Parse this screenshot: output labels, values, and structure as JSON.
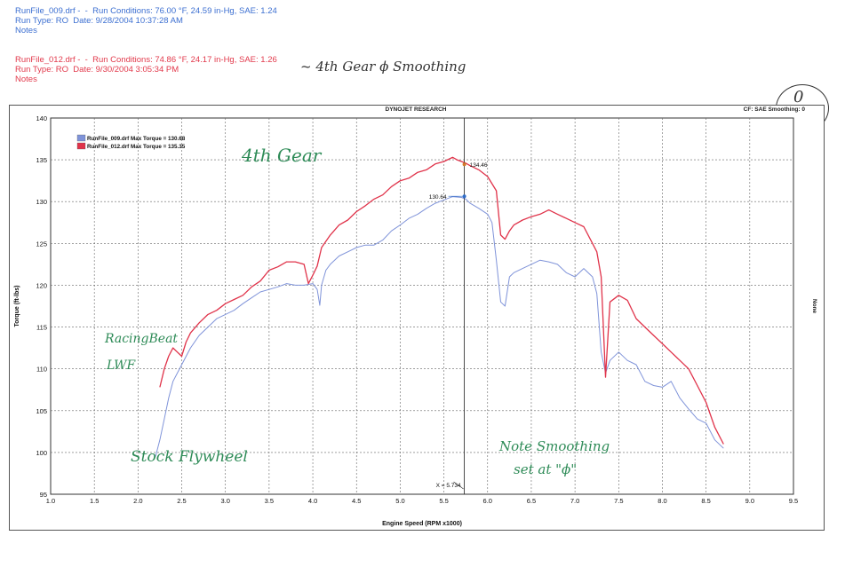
{
  "header": {
    "run1": {
      "line1": "RunFile_009.drf -  -  Run Conditions: 76.00 °F, 24.59 in-Hg, SAE: 1.24",
      "line2": "Run Type: RO  Date: 9/28/2004 10:37:28 AM",
      "line3": "Notes"
    },
    "run2": {
      "line1": "RunFile_012.drf -  -  Run Conditions: 74.86 °F, 24.17 in-Hg, SAE: 1.26",
      "line2": "Run Type: RO  Date: 9/30/2004 3:05:34 PM",
      "line3": "Notes"
    },
    "handwritten_note": "~ 4th Gear ϕ Smoothing"
  },
  "colors": {
    "run1": "#7f93d9",
    "run2": "#e0334a",
    "grid": "#666666",
    "hand": "#2e8b57"
  },
  "chart_data": {
    "type": "line",
    "title": "DYNOJET RESEARCH",
    "corner_label": "CF: SAE  Smoothing: 0",
    "right_label": "None",
    "xlabel": "Engine Speed (RPM x1000)",
    "ylabel": "Torque (ft-lbs)",
    "xlim": [
      1.0,
      9.5
    ],
    "ylim": [
      95,
      140
    ],
    "xticks": [
      "1.0",
      "1.5",
      "2.0",
      "2.5",
      "3.0",
      "3.5",
      "4.0",
      "4.5",
      "5.0",
      "5.5",
      "6.0",
      "6.5",
      "7.0",
      "7.5",
      "8.0",
      "8.5",
      "9.0",
      "9.5"
    ],
    "yticks": [
      "95",
      "100",
      "105",
      "110",
      "115",
      "120",
      "125",
      "130",
      "135",
      "140"
    ],
    "grid": true,
    "legend": [
      "RunFile_009.drf Max Torque = 130.68",
      "RunFile_012.drf Max Torque = 135.35"
    ],
    "cursor_x": 5.734,
    "cursor_label": "X = 5.734",
    "point_labels": [
      {
        "x": 5.734,
        "y": 134.46,
        "text": "134.46",
        "series": 1
      },
      {
        "x": 5.734,
        "y": 130.64,
        "text": "130.64",
        "series": 0
      }
    ],
    "series": [
      {
        "name": "RunFile_009.drf",
        "x": [
          2.2,
          2.25,
          2.3,
          2.35,
          2.4,
          2.5,
          2.6,
          2.7,
          2.8,
          2.9,
          3.0,
          3.1,
          3.2,
          3.3,
          3.4,
          3.5,
          3.6,
          3.7,
          3.8,
          3.9,
          4.0,
          4.05,
          4.08,
          4.1,
          4.15,
          4.2,
          4.3,
          4.4,
          4.5,
          4.6,
          4.7,
          4.8,
          4.9,
          5.0,
          5.1,
          5.2,
          5.3,
          5.4,
          5.5,
          5.6,
          5.7,
          5.75,
          5.8,
          5.9,
          6.0,
          6.05,
          6.1,
          6.15,
          6.2,
          6.25,
          6.3,
          6.4,
          6.5,
          6.6,
          6.7,
          6.8,
          6.9,
          7.0,
          7.1,
          7.2,
          7.25,
          7.3,
          7.35,
          7.4,
          7.5,
          7.6,
          7.7,
          7.8,
          7.9,
          8.0,
          8.1,
          8.2,
          8.3,
          8.4,
          8.5,
          8.6,
          8.7
        ],
        "values": [
          99.5,
          101.5,
          104,
          106.5,
          108.5,
          110.5,
          112.5,
          114,
          115,
          116,
          116.5,
          117,
          117.8,
          118.5,
          119.2,
          119.5,
          119.8,
          120.2,
          120,
          120,
          120.2,
          119.5,
          117.6,
          120,
          121.8,
          122.5,
          123.5,
          124,
          124.5,
          124.8,
          124.8,
          125.4,
          126.5,
          127.2,
          128,
          128.5,
          129.2,
          129.8,
          130.2,
          130.6,
          130.5,
          130.3,
          129.8,
          129.2,
          128.5,
          127.5,
          123,
          118,
          117.5,
          121,
          121.5,
          122,
          122.5,
          123,
          122.8,
          122.5,
          121.5,
          121,
          122,
          121,
          119,
          112,
          109.5,
          111,
          112,
          111,
          110.5,
          108.5,
          108,
          107.8,
          108.5,
          106.5,
          105.2,
          104,
          103.5,
          101.5,
          100.5
        ]
      },
      {
        "name": "RunFile_012.drf",
        "x": [
          2.25,
          2.3,
          2.35,
          2.4,
          2.45,
          2.5,
          2.55,
          2.6,
          2.7,
          2.8,
          2.9,
          3.0,
          3.1,
          3.2,
          3.3,
          3.4,
          3.5,
          3.6,
          3.7,
          3.8,
          3.9,
          3.95,
          4.0,
          4.05,
          4.1,
          4.2,
          4.3,
          4.4,
          4.5,
          4.6,
          4.7,
          4.8,
          4.9,
          5.0,
          5.1,
          5.2,
          5.3,
          5.4,
          5.5,
          5.6,
          5.65,
          5.7,
          5.75,
          5.8,
          5.9,
          6.0,
          6.1,
          6.15,
          6.2,
          6.25,
          6.3,
          6.4,
          6.5,
          6.6,
          6.7,
          6.8,
          6.9,
          7.0,
          7.1,
          7.2,
          7.25,
          7.3,
          7.35,
          7.4,
          7.5,
          7.6,
          7.7,
          7.8,
          7.9,
          8.0,
          8.1,
          8.2,
          8.3,
          8.4,
          8.5,
          8.6,
          8.7
        ],
        "values": [
          107.8,
          110,
          111.5,
          112.5,
          112,
          111.5,
          113.2,
          114.3,
          115.5,
          116.5,
          117,
          117.8,
          118.3,
          118.8,
          119.8,
          120.5,
          121.8,
          122.2,
          122.8,
          122.8,
          122.5,
          120.2,
          121.2,
          122.3,
          124.5,
          126,
          127.2,
          127.8,
          128.8,
          129.5,
          130.3,
          130.8,
          131.8,
          132.5,
          132.8,
          133.5,
          133.8,
          134.5,
          134.8,
          135.3,
          135,
          134.8,
          134.6,
          134.3,
          133.8,
          133,
          131.3,
          126,
          125.5,
          126.5,
          127.2,
          127.8,
          128.2,
          128.5,
          129,
          128.5,
          128,
          127.5,
          127,
          125,
          124,
          121,
          109,
          118,
          118.8,
          118.2,
          116,
          115,
          114,
          113,
          112,
          111,
          110,
          108,
          106,
          103,
          101
        ]
      }
    ]
  }
}
